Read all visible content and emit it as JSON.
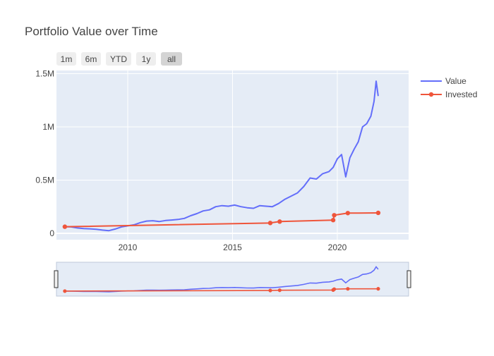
{
  "chart_data": {
    "type": "line",
    "title": "Portfolio Value over Time",
    "xlabel": "",
    "ylabel": "",
    "xlim": [
      2006.6,
      2023.4
    ],
    "ylim": [
      -60000,
      1530000
    ],
    "x_ticks": [
      2010,
      2015,
      2020
    ],
    "x_tick_labels": [
      "2010",
      "2015",
      "2020"
    ],
    "y_ticks": [
      0,
      500000,
      1000000,
      1500000
    ],
    "y_tick_labels": [
      "0",
      "0.5M",
      "1M",
      "1.5M"
    ],
    "grid": true,
    "legend_position": "top-right",
    "range_selector": {
      "buttons": [
        "1m",
        "6m",
        "YTD",
        "1y",
        "all"
      ],
      "active": "all"
    },
    "range_slider": true,
    "series": [
      {
        "name": "Value",
        "color": "#636efa",
        "mode": "lines",
        "x": [
          2007.0,
          2007.3,
          2007.6,
          2007.9,
          2008.2,
          2008.5,
          2008.8,
          2009.1,
          2009.4,
          2009.7,
          2010.0,
          2010.3,
          2010.6,
          2010.9,
          2011.2,
          2011.5,
          2011.8,
          2012.1,
          2012.4,
          2012.7,
          2013.0,
          2013.3,
          2013.6,
          2013.9,
          2014.2,
          2014.5,
          2014.8,
          2015.1,
          2015.4,
          2015.7,
          2016.0,
          2016.3,
          2016.6,
          2016.9,
          2017.2,
          2017.5,
          2017.8,
          2018.1,
          2018.4,
          2018.7,
          2019.0,
          2019.3,
          2019.6,
          2019.8,
          2020.0,
          2020.2,
          2020.4,
          2020.6,
          2020.8,
          2021.0,
          2021.2,
          2021.4,
          2021.6,
          2021.75,
          2021.85,
          2021.95
        ],
        "y": [
          62000,
          60000,
          50000,
          45000,
          42000,
          38000,
          30000,
          25000,
          40000,
          60000,
          70000,
          80000,
          100000,
          115000,
          118000,
          110000,
          120000,
          125000,
          130000,
          140000,
          165000,
          185000,
          210000,
          220000,
          250000,
          260000,
          255000,
          265000,
          250000,
          240000,
          235000,
          260000,
          255000,
          250000,
          280000,
          320000,
          350000,
          380000,
          440000,
          520000,
          510000,
          560000,
          580000,
          620000,
          700000,
          740000,
          530000,
          710000,
          790000,
          860000,
          1000000,
          1030000,
          1100000,
          1240000,
          1430000,
          1290000
        ]
      },
      {
        "name": "Invested",
        "color": "#ef553b",
        "mode": "lines+markers",
        "x": [
          2007.0,
          2016.8,
          2017.25,
          2019.8,
          2019.85,
          2020.5,
          2021.95
        ],
        "y": [
          62000,
          97000,
          110000,
          124000,
          170000,
          190000,
          192000
        ]
      }
    ]
  }
}
